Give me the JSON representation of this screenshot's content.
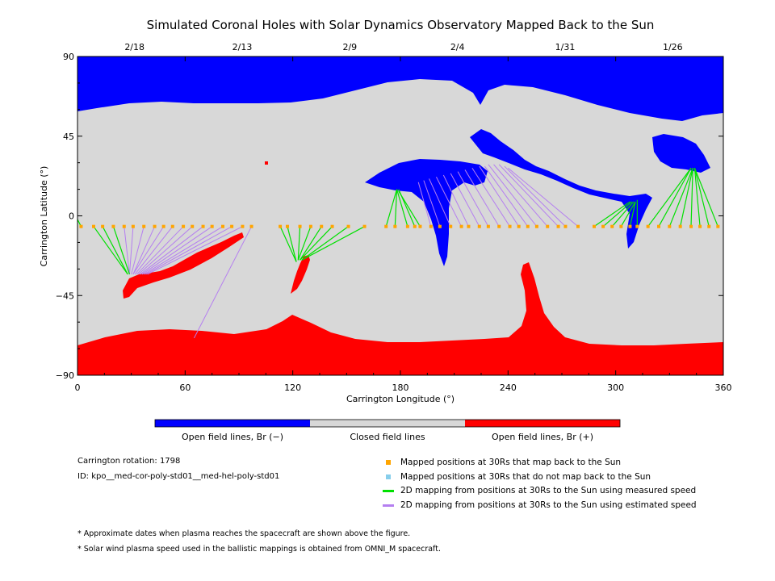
{
  "chart_data": {
    "type": "map",
    "title": "Simulated Coronal Holes with Solar Dynamics Observatory Mapped Back to the Sun",
    "xlabel": "Carrington Longitude (°)",
    "ylabel": "Carrington Latitude (°)",
    "xlim": [
      0,
      360
    ],
    "ylim": [
      -90,
      90
    ],
    "x_ticks": [
      "0",
      "60",
      "120",
      "180",
      "240",
      "300",
      "360"
    ],
    "y_ticks": [
      "90",
      "45",
      "0",
      "−45",
      "−90"
    ],
    "top_date_ticks": [
      {
        "label": "2/18",
        "lon": 30
      },
      {
        "label": "2/13",
        "lon": 90
      },
      {
        "label": "2/9",
        "lon": 150
      },
      {
        "label": "2/4",
        "lon": 210
      },
      {
        "label": "1/31",
        "lon": 270
      },
      {
        "label": "1/26",
        "lon": 330
      }
    ],
    "colors": {
      "open_negative": "#0000ff",
      "closed": "#d8d8d8",
      "open_positive": "#ff0000",
      "mapped_point": "#ffa500",
      "unmapped_point": "#87ceeb",
      "measured_line": "#00e000",
      "estimated_line": "#b57ff0"
    },
    "colorbar": [
      {
        "label": "Open field lines, Br (−)",
        "color": "#0000ff"
      },
      {
        "label": "Closed field lines",
        "color": "#d8d8d8"
      },
      {
        "label": "Open field lines, Br (+)",
        "color": "#ff0000"
      }
    ],
    "mapped_positions_lat": -6,
    "mapped_positions_lon": [
      2,
      9,
      14,
      20,
      26,
      31,
      37,
      43,
      48,
      53,
      59,
      64,
      70,
      75,
      81,
      86,
      92,
      97,
      113,
      117,
      124,
      130,
      136,
      142,
      151,
      160,
      172,
      177,
      184,
      188,
      191,
      197,
      202,
      208,
      214,
      218,
      224,
      229,
      235,
      241,
      246,
      251,
      256,
      262,
      268,
      272,
      279,
      288,
      293,
      298,
      303,
      308,
      312,
      318,
      324,
      330,
      336,
      342,
      347,
      352,
      357
    ],
    "measured_mappings": [
      {
        "src": [
          2,
          -6
        ],
        "dst": [
          0,
          -2
        ]
      },
      {
        "src": [
          9,
          -6
        ],
        "dst": [
          28,
          -33
        ]
      },
      {
        "src": [
          14,
          -6
        ],
        "dst": [
          28,
          -33
        ]
      },
      {
        "src": [
          20,
          -6
        ],
        "dst": [
          29,
          -33
        ]
      },
      {
        "src": [
          124,
          -6
        ],
        "dst": [
          123,
          -25
        ]
      },
      {
        "src": [
          130,
          -6
        ],
        "dst": [
          123,
          -25
        ]
      },
      {
        "src": [
          136,
          -6
        ],
        "dst": [
          124,
          -25
        ]
      },
      {
        "src": [
          142,
          -6
        ],
        "dst": [
          124,
          -25
        ]
      },
      {
        "src": [
          151,
          -6
        ],
        "dst": [
          125,
          -25
        ]
      },
      {
        "src": [
          160,
          -6
        ],
        "dst": [
          125,
          -25
        ]
      },
      {
        "src": [
          113,
          -6
        ],
        "dst": [
          122,
          -26
        ]
      },
      {
        "src": [
          117,
          -6
        ],
        "dst": [
          122,
          -26
        ]
      },
      {
        "src": [
          172,
          -6
        ],
        "dst": [
          178,
          15
        ]
      },
      {
        "src": [
          177,
          -6
        ],
        "dst": [
          178,
          15
        ]
      },
      {
        "src": [
          184,
          -6
        ],
        "dst": [
          178,
          15
        ]
      },
      {
        "src": [
          188,
          -6
        ],
        "dst": [
          179,
          15
        ]
      },
      {
        "src": [
          191,
          -6
        ],
        "dst": [
          179,
          14
        ]
      },
      {
        "src": [
          288,
          -6
        ],
        "dst": [
          308,
          8
        ]
      },
      {
        "src": [
          293,
          -6
        ],
        "dst": [
          309,
          8
        ]
      },
      {
        "src": [
          298,
          -6
        ],
        "dst": [
          310,
          8
        ]
      },
      {
        "src": [
          303,
          -6
        ],
        "dst": [
          311,
          8
        ]
      },
      {
        "src": [
          308,
          -6
        ],
        "dst": [
          311,
          8
        ]
      },
      {
        "src": [
          312,
          -6
        ],
        "dst": [
          312,
          9
        ]
      },
      {
        "src": [
          318,
          -6
        ],
        "dst": [
          342,
          27
        ]
      },
      {
        "src": [
          324,
          -6
        ],
        "dst": [
          342,
          27
        ]
      },
      {
        "src": [
          330,
          -6
        ],
        "dst": [
          343,
          27
        ]
      },
      {
        "src": [
          336,
          -6
        ],
        "dst": [
          343,
          27
        ]
      },
      {
        "src": [
          342,
          -6
        ],
        "dst": [
          343,
          27
        ]
      },
      {
        "src": [
          347,
          -6
        ],
        "dst": [
          344,
          27
        ]
      },
      {
        "src": [
          352,
          -6
        ],
        "dst": [
          344,
          27
        ]
      },
      {
        "src": [
          357,
          -6
        ],
        "dst": [
          344,
          27
        ]
      }
    ],
    "estimated_mappings": [
      {
        "src": [
          26,
          -6
        ],
        "dst": [
          29,
          -33
        ]
      },
      {
        "src": [
          31,
          -6
        ],
        "dst": [
          29,
          -33
        ]
      },
      {
        "src": [
          37,
          -6
        ],
        "dst": [
          30,
          -33
        ]
      },
      {
        "src": [
          43,
          -6
        ],
        "dst": [
          31,
          -33
        ]
      },
      {
        "src": [
          48,
          -6
        ],
        "dst": [
          31,
          -33
        ]
      },
      {
        "src": [
          53,
          -6
        ],
        "dst": [
          32,
          -33
        ]
      },
      {
        "src": [
          59,
          -6
        ],
        "dst": [
          33,
          -33
        ]
      },
      {
        "src": [
          64,
          -6
        ],
        "dst": [
          34,
          -33
        ]
      },
      {
        "src": [
          70,
          -6
        ],
        "dst": [
          35,
          -33
        ]
      },
      {
        "src": [
          75,
          -6
        ],
        "dst": [
          36,
          -33
        ]
      },
      {
        "src": [
          81,
          -6
        ],
        "dst": [
          37,
          -33
        ]
      },
      {
        "src": [
          86,
          -6
        ],
        "dst": [
          38,
          -33
        ]
      },
      {
        "src": [
          92,
          -6
        ],
        "dst": [
          39,
          -33
        ]
      },
      {
        "src": [
          97,
          -6
        ],
        "dst": [
          65,
          -69
        ]
      },
      {
        "src": [
          197,
          -6
        ],
        "dst": [
          190,
          19
        ]
      },
      {
        "src": [
          202,
          -6
        ],
        "dst": [
          193,
          20
        ]
      },
      {
        "src": [
          208,
          -6
        ],
        "dst": [
          196,
          21
        ]
      },
      {
        "src": [
          214,
          -6
        ],
        "dst": [
          200,
          22
        ]
      },
      {
        "src": [
          218,
          -6
        ],
        "dst": [
          204,
          23
        ]
      },
      {
        "src": [
          224,
          -6
        ],
        "dst": [
          208,
          24
        ]
      },
      {
        "src": [
          229,
          -6
        ],
        "dst": [
          212,
          25
        ]
      },
      {
        "src": [
          235,
          -6
        ],
        "dst": [
          216,
          26
        ]
      },
      {
        "src": [
          241,
          -6
        ],
        "dst": [
          220,
          27
        ]
      },
      {
        "src": [
          246,
          -6
        ],
        "dst": [
          224,
          28
        ]
      },
      {
        "src": [
          251,
          -6
        ],
        "dst": [
          227,
          28
        ]
      },
      {
        "src": [
          256,
          -6
        ],
        "dst": [
          229,
          29
        ]
      },
      {
        "src": [
          262,
          -6
        ],
        "dst": [
          232,
          29
        ]
      },
      {
        "src": [
          268,
          -6
        ],
        "dst": [
          235,
          29
        ]
      },
      {
        "src": [
          272,
          -6
        ],
        "dst": [
          238,
          28
        ]
      },
      {
        "src": [
          279,
          -6
        ],
        "dst": [
          240,
          27
        ]
      }
    ]
  },
  "colorbar_labels": {
    "negative": "Open field lines, Br (−)",
    "closed": "Closed field lines",
    "positive": "Open field lines, Br (+)"
  },
  "info": {
    "rotation": "Carrington rotation: 1798",
    "id": "ID: kpo__med-cor-poly-std01__med-hel-poly-std01"
  },
  "legend": [
    {
      "label": "Mapped positions at 30Rs that map back to the Sun",
      "kind": "square",
      "color": "#ffa500"
    },
    {
      "label": "Mapped positions at 30Rs that do not map back to the Sun",
      "kind": "square",
      "color": "#87ceeb"
    },
    {
      "label": "2D mapping from positions at 30Rs to the Sun using measured speed",
      "kind": "line",
      "color": "#00e000"
    },
    {
      "label": "2D mapping from positions at 30Rs to the Sun using estimated speed",
      "kind": "line",
      "color": "#b57ff0"
    }
  ],
  "footnotes": [
    "* Approximate dates when plasma reaches the spacecraft are shown above the figure.",
    "* Solar wind plasma speed used in the ballistic mappings is obtained from OMNI_M spacecraft."
  ]
}
